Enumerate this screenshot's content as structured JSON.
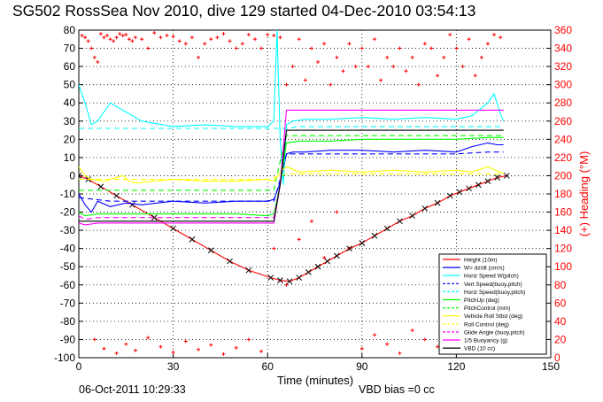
{
  "title": "SG502 RossSea Nov 2010, dive 129 started 04-Dec-2010 03:54:13",
  "timestamp": "06-Oct-2011 10:29:33",
  "vbd_bias": "VBD bias =0 cc",
  "chart_data": {
    "type": "line",
    "xlabel": "Time (minutes)",
    "ylabel": "",
    "y2label": "(+) Heading (°M)",
    "xlim": [
      0,
      150
    ],
    "ylim": [
      -100,
      80
    ],
    "y2lim": [
      0,
      360
    ],
    "xticks": [
      0,
      30,
      60,
      90,
      120,
      150
    ],
    "yticks": [
      -100,
      -90,
      -80,
      -70,
      -60,
      -50,
      -40,
      -30,
      -20,
      -10,
      0,
      10,
      20,
      30,
      40,
      50,
      60,
      70,
      80
    ],
    "y2ticks": [
      0,
      20,
      40,
      60,
      80,
      100,
      120,
      140,
      160,
      180,
      200,
      220,
      240,
      260,
      280,
      300,
      320,
      340,
      360
    ],
    "grid": true,
    "legend_position": "bottom-right",
    "legend": [
      {
        "label": "Height (10m)",
        "color": "#ff0000",
        "style": "solid"
      },
      {
        "label": "W= dz/dt (cm/s)",
        "color": "#0000ff",
        "style": "solid"
      },
      {
        "label": "Horiz Speed W(pitch)",
        "color": "#00ffff",
        "style": "solid"
      },
      {
        "label": "Vert Speed(buoy,pitch)",
        "color": "#0000ff",
        "style": "dashed"
      },
      {
        "label": "Horiz Speed(buoy,pitch)",
        "color": "#00ffff",
        "style": "dashed"
      },
      {
        "label": "PitchUp (deg)",
        "color": "#00ff00",
        "style": "solid"
      },
      {
        "label": "PitchControl (mm)",
        "color": "#00ff00",
        "style": "dashed"
      },
      {
        "label": "Vehicle Roll Stbd (deg)",
        "color": "#ffff00",
        "style": "solid"
      },
      {
        "label": "Roll Control (deg)",
        "color": "#ffff00",
        "style": "dashed"
      },
      {
        "label": "Glide Angle (buoy,pitch)",
        "color": "#ff00ff",
        "style": "dashed"
      },
      {
        "label": "1/5 Buoyancy (g)",
        "color": "#ff00ff",
        "style": "solid"
      },
      {
        "label": "VBD (10 cc)",
        "color": "#000000",
        "style": "solid"
      }
    ],
    "series": [
      {
        "name": "Height (10m)",
        "color": "#ff0000",
        "style": "solid",
        "marker": "x-black",
        "x": [
          0,
          3,
          7,
          12,
          17,
          24,
          30,
          36,
          42,
          48,
          54,
          61,
          64,
          67,
          70,
          73,
          76,
          79,
          82,
          86,
          90,
          94,
          98,
          102,
          106,
          110,
          114,
          118,
          121,
          124,
          127,
          130,
          133,
          136
        ],
        "y": [
          0,
          -2,
          -6,
          -11,
          -16,
          -23,
          -29,
          -35,
          -41,
          -47,
          -52,
          -56,
          -57.5,
          -58,
          -56,
          -53,
          -50,
          -47,
          -44,
          -40,
          -37,
          -33,
          -29,
          -25,
          -22,
          -18,
          -15,
          -11,
          -9,
          -7,
          -5,
          -3,
          -1,
          0
        ]
      },
      {
        "name": "W= dz/dt (cm/s)",
        "color": "#0000ff",
        "style": "solid",
        "x": [
          0,
          2,
          4,
          6,
          10,
          15,
          20,
          30,
          40,
          50,
          60,
          62,
          64,
          66,
          68,
          72,
          80,
          90,
          100,
          110,
          120,
          125,
          130,
          133,
          135
        ],
        "y": [
          -10,
          -16,
          -20,
          -14,
          -17,
          -15,
          -16,
          -14,
          -15,
          -14,
          -14,
          -13,
          -4,
          12,
          13,
          13,
          14,
          14,
          13,
          14,
          13,
          16,
          18,
          17,
          17
        ]
      },
      {
        "name": "Horiz Speed W(pitch)",
        "color": "#00ffff",
        "style": "solid",
        "x": [
          0,
          2,
          4,
          6,
          10,
          15,
          20,
          30,
          40,
          50,
          60,
          62,
          63,
          64,
          65,
          66,
          68,
          72,
          80,
          90,
          100,
          110,
          120,
          125,
          130,
          132,
          134,
          135
        ],
        "y": [
          50,
          40,
          28,
          30,
          40,
          35,
          30,
          27,
          28,
          27,
          27,
          30,
          80,
          20,
          -5,
          28,
          30,
          31,
          31,
          32,
          31,
          32,
          31,
          33,
          40,
          45,
          34,
          30
        ]
      },
      {
        "name": "Vert Speed(buoy,pitch)",
        "color": "#0000ff",
        "style": "dashed",
        "x": [
          0,
          10,
          20,
          30,
          40,
          50,
          60,
          62,
          64,
          66,
          70,
          80,
          90,
          100,
          110,
          120,
          130,
          135
        ],
        "y": [
          -12,
          -14,
          -14,
          -14,
          -14,
          -14,
          -14,
          -14,
          -2,
          12,
          12,
          12,
          12,
          12,
          12,
          12,
          13,
          13
        ]
      },
      {
        "name": "Horiz Speed(buoy,pitch)",
        "color": "#00ffff",
        "style": "dashed",
        "x": [
          0,
          10,
          20,
          30,
          40,
          50,
          60,
          62,
          64,
          66,
          70,
          80,
          90,
          100,
          110,
          120,
          130,
          135
        ],
        "y": [
          26,
          26,
          26,
          26,
          26,
          26,
          26,
          26,
          26,
          26,
          27,
          27,
          27,
          27,
          27,
          27,
          27,
          27
        ]
      },
      {
        "name": "PitchUp (deg)",
        "color": "#00ff00",
        "style": "solid",
        "x": [
          0,
          2,
          6,
          10,
          20,
          30,
          40,
          50,
          60,
          62,
          64,
          66,
          70,
          80,
          90,
          100,
          110,
          120,
          130,
          135
        ],
        "y": [
          -20,
          -22,
          -21,
          -21,
          -21,
          -21,
          -21,
          -21,
          -22,
          -21,
          -5,
          18,
          19,
          19,
          20,
          20,
          20,
          20,
          21,
          21
        ]
      },
      {
        "name": "PitchControl (mm)",
        "color": "#00ff00",
        "style": "dashed",
        "x": [
          0,
          2,
          6,
          60,
          62,
          64,
          66,
          135
        ],
        "y": [
          -8,
          -8,
          -8,
          -8,
          -8,
          8,
          22,
          22
        ]
      },
      {
        "name": "Vehicle Roll Stbd (deg)",
        "color": "#ffff00",
        "style": "solid",
        "x": [
          0,
          2,
          4,
          8,
          14,
          16,
          18,
          24,
          30,
          40,
          50,
          60,
          62,
          64,
          66,
          70,
          80,
          90,
          100,
          110,
          120,
          125,
          130,
          135
        ],
        "y": [
          5,
          0,
          -2,
          -3,
          0,
          -3,
          -4,
          -3,
          -2,
          -3,
          -3,
          -2,
          -3,
          2,
          5,
          2,
          3,
          2,
          3,
          2,
          3,
          2,
          5,
          1
        ]
      },
      {
        "name": "Roll Control (deg)",
        "color": "#ffff00",
        "style": "dashed",
        "x": [
          0,
          10,
          20,
          30,
          40,
          50,
          60,
          64,
          66,
          135
        ],
        "y": [
          -2,
          -2,
          -2,
          -2,
          -2,
          -2,
          -2,
          0,
          1,
          1
        ]
      },
      {
        "name": "Glide Angle (buoy,pitch)",
        "color": "#ff00ff",
        "style": "dashed",
        "x": [
          0,
          2,
          6,
          60,
          62,
          64,
          66,
          135
        ],
        "y": [
          -22,
          -24,
          -23,
          -23,
          -23,
          -5,
          25,
          25
        ]
      },
      {
        "name": "1/5 Buoyancy (g)",
        "color": "#ff00ff",
        "style": "solid",
        "x": [
          0,
          2,
          6,
          60,
          62,
          64,
          66,
          135
        ],
        "y": [
          -26,
          -27,
          -26,
          -26,
          -26,
          -5,
          36,
          36
        ]
      },
      {
        "name": "VBD (10 cc)",
        "color": "#000000",
        "style": "solid",
        "x": [
          0,
          2,
          6,
          60,
          62,
          64,
          66,
          135
        ],
        "y": [
          -25,
          -25,
          -25,
          -25,
          -25,
          -5,
          25,
          25
        ]
      }
    ],
    "heading_points": {
      "name": "Heading",
      "color": "#ff0000",
      "marker": "+",
      "x": [
        1,
        2,
        3,
        4,
        5,
        6,
        7,
        8,
        9,
        10,
        11,
        12,
        13,
        14,
        15,
        16,
        17,
        18,
        20,
        22,
        24,
        26,
        28,
        30,
        32,
        34,
        36,
        38,
        40,
        42,
        44,
        46,
        48,
        50,
        52,
        54,
        56,
        58,
        60,
        62,
        64,
        66,
        68,
        70,
        72,
        74,
        76,
        78,
        80,
        82,
        84,
        86,
        88,
        90,
        92,
        94,
        96,
        98,
        100,
        102,
        104,
        106,
        108,
        110,
        112,
        114,
        116,
        118,
        120,
        122,
        124,
        126,
        128,
        130,
        132,
        134,
        5,
        8,
        12,
        15,
        18,
        22,
        26,
        30,
        34,
        38,
        42,
        46,
        50,
        54,
        58,
        62,
        66,
        70,
        74,
        78,
        82,
        86,
        90,
        94,
        98,
        102,
        106,
        110,
        114,
        118,
        122,
        126,
        130
      ],
      "y": [
        354,
        352,
        348,
        340,
        330,
        325,
        356,
        352,
        354,
        350,
        348,
        352,
        356,
        354,
        355,
        350,
        348,
        352,
        350,
        340,
        357,
        352,
        354,
        353,
        348,
        345,
        352,
        330,
        345,
        350,
        352,
        356,
        348,
        340,
        345,
        355,
        350,
        340,
        355,
        354,
        352,
        300,
        320,
        350,
        305,
        340,
        325,
        345,
        300,
        330,
        315,
        345,
        320,
        340,
        320,
        350,
        305,
        330,
        320,
        340,
        315,
        330,
        300,
        345,
        340,
        310,
        330,
        355,
        340,
        320,
        350,
        310,
        330,
        345,
        355,
        352,
        20,
        10,
        5,
        15,
        8,
        22,
        12,
        6,
        18,
        9,
        14,
        4,
        11,
        20,
        7,
        120,
        80,
        130,
        150,
        110,
        160,
        120,
        10,
        25,
        15,
        5,
        30,
        20,
        12,
        8,
        24,
        16,
        6
      ]
    }
  }
}
